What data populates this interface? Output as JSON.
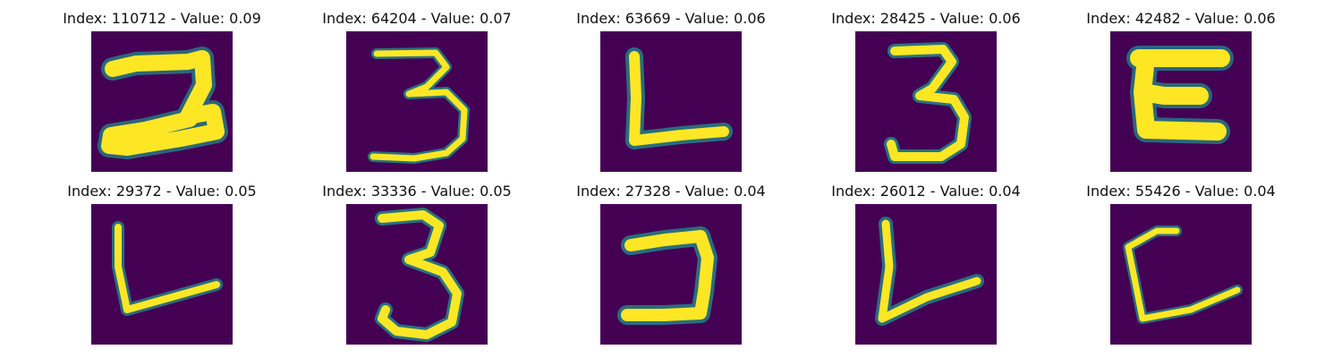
{
  "colors": {
    "background": "#440154",
    "low": "#3b528b",
    "mid": "#21918c",
    "high": "#5ec962",
    "peak": "#fde725"
  },
  "panels": [
    {
      "title": "Index: 110712 - Value: 0.09",
      "glyph": "2"
    },
    {
      "title": "Index: 64204 - Value: 0.07",
      "glyph": "3"
    },
    {
      "title": "Index: 63669 - Value: 0.06",
      "glyph": "L"
    },
    {
      "title": "Index: 28425 - Value: 0.06",
      "glyph": "3"
    },
    {
      "title": "Index: 42482 - Value: 0.06",
      "glyph": "E"
    },
    {
      "title": "Index: 29372 - Value: 0.05",
      "glyph": "L"
    },
    {
      "title": "Index: 33336 - Value: 0.05",
      "glyph": "3"
    },
    {
      "title": "Index: 27328 - Value: 0.04",
      "glyph": "J"
    },
    {
      "title": "Index: 26012 - Value: 0.04",
      "glyph": "V"
    },
    {
      "title": "Index: 55426 - Value: 0.04",
      "glyph": "C"
    }
  ]
}
